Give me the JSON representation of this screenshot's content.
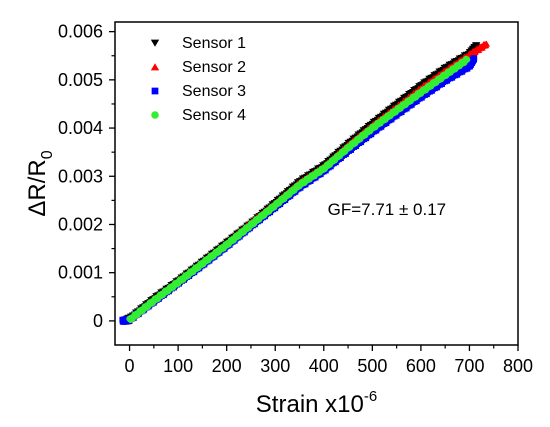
{
  "chart_data": {
    "type": "scatter",
    "xlabel": "Strain x10",
    "xlabel_superscript": "-6",
    "ylabel_main": "ΔR/R",
    "ylabel_subscript": "0",
    "xlim": [
      -30,
      800
    ],
    "ylim": [
      -0.0005,
      0.0062
    ],
    "xticks": [
      0,
      100,
      200,
      300,
      400,
      500,
      600,
      700,
      800
    ],
    "yticks": [
      0,
      0.001,
      0.002,
      0.003,
      0.004,
      0.005,
      0.006
    ],
    "ytick_labels": [
      "0",
      "0.001",
      "0.002",
      "0.003",
      "0.004",
      "0.005",
      "0.006"
    ],
    "annotation": "GF=7.71 ± 0.17",
    "legend_position": "top-left",
    "series": [
      {
        "name": "Sensor 1",
        "color": "#000000",
        "marker": "triangle-down",
        "x": [
          -10,
          0,
          50,
          100,
          150,
          200,
          250,
          300,
          350,
          400,
          450,
          500,
          550,
          600,
          650,
          700,
          715
        ],
        "y": [
          0,
          5e-05,
          0.00046,
          0.00083,
          0.00122,
          0.00162,
          0.00202,
          0.00245,
          0.00289,
          0.00322,
          0.00367,
          0.00409,
          0.00449,
          0.00488,
          0.00524,
          0.00555,
          0.00572
        ]
      },
      {
        "name": "Sensor 2",
        "color": "#ff0000",
        "marker": "triangle-up",
        "x": [
          -10,
          0,
          50,
          100,
          150,
          200,
          250,
          300,
          350,
          400,
          450,
          500,
          550,
          600,
          650,
          700,
          735
        ],
        "y": [
          0,
          3e-05,
          0.00043,
          0.00081,
          0.0012,
          0.0016,
          0.00203,
          0.00243,
          0.00286,
          0.00319,
          0.00364,
          0.00405,
          0.00443,
          0.00482,
          0.00518,
          0.00552,
          0.00575
        ]
      },
      {
        "name": "Sensor 3",
        "color": "#0000ff",
        "marker": "square",
        "x": [
          -15,
          0,
          50,
          100,
          150,
          200,
          250,
          300,
          350,
          400,
          450,
          500,
          550,
          600,
          650,
          700,
          710
        ],
        "y": [
          0,
          2e-05,
          0.0004,
          0.00078,
          0.00116,
          0.00155,
          0.00196,
          0.00236,
          0.00277,
          0.00311,
          0.00352,
          0.00391,
          0.00428,
          0.00464,
          0.00498,
          0.00528,
          0.00545
        ]
      },
      {
        "name": "Sensor 4",
        "color": "#33ee33",
        "marker": "circle",
        "x": [
          0,
          50,
          100,
          150,
          200,
          250,
          300,
          350,
          400,
          450,
          500,
          550,
          600,
          650,
          695
        ],
        "y": [
          2e-05,
          0.00042,
          0.0008,
          0.00119,
          0.00158,
          0.00199,
          0.0024,
          0.00282,
          0.00316,
          0.00359,
          0.004,
          0.00437,
          0.00474,
          0.0051,
          0.00542
        ]
      }
    ]
  }
}
